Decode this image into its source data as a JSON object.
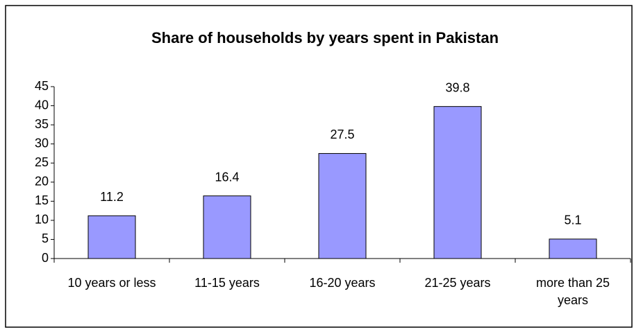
{
  "chart_data": {
    "type": "bar",
    "title": "Share of households by years spent in Pakistan",
    "categories": [
      "10 years or less",
      "11-15 years",
      "16-20 years",
      "21-25 years",
      "more than 25 years"
    ],
    "values": [
      11.2,
      16.4,
      27.5,
      39.8,
      5.1
    ],
    "color": "#9999ff",
    "ylim": [
      0,
      45
    ],
    "yticks": [
      0,
      5,
      10,
      15,
      20,
      25,
      30,
      35,
      40,
      45
    ],
    "grid": false
  }
}
